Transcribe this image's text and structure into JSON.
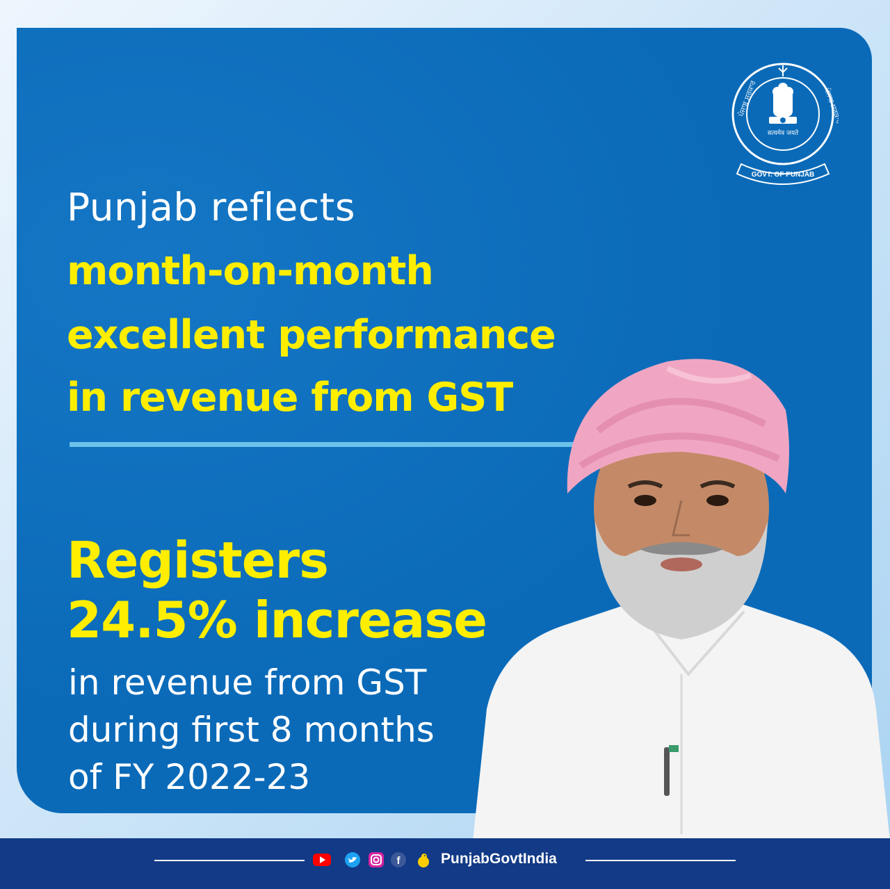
{
  "headline": {
    "intro": "Punjab reflects",
    "emphasis": [
      "month-on-month",
      "excellent performance",
      "in revenue from GST"
    ]
  },
  "highlight": {
    "line1": "Registers",
    "line2": "24.5% increase",
    "details": [
      "in revenue from GST",
      "during first 8 months",
      "of FY 2022-23"
    ]
  },
  "emblem": {
    "text_left": "ਪੰਜਾਬ ਸਰਕਾਰ",
    "text_right": "ਪੰਜਾਬ ਸਰਕਾਰ",
    "motto": "सत्यमेव जयते",
    "ribbon": "GOVT. OF PUNJAB"
  },
  "footer": {
    "icons": [
      "youtube-icon",
      "twitter-icon",
      "instagram-icon",
      "facebook-icon",
      "koo-icon"
    ],
    "handle": "PunjabGovtIndia"
  },
  "colors": {
    "panel": "#0a6ab8",
    "accent_yellow": "#ffee00",
    "divider": "#6cc3ea",
    "footer": "#123a86"
  }
}
